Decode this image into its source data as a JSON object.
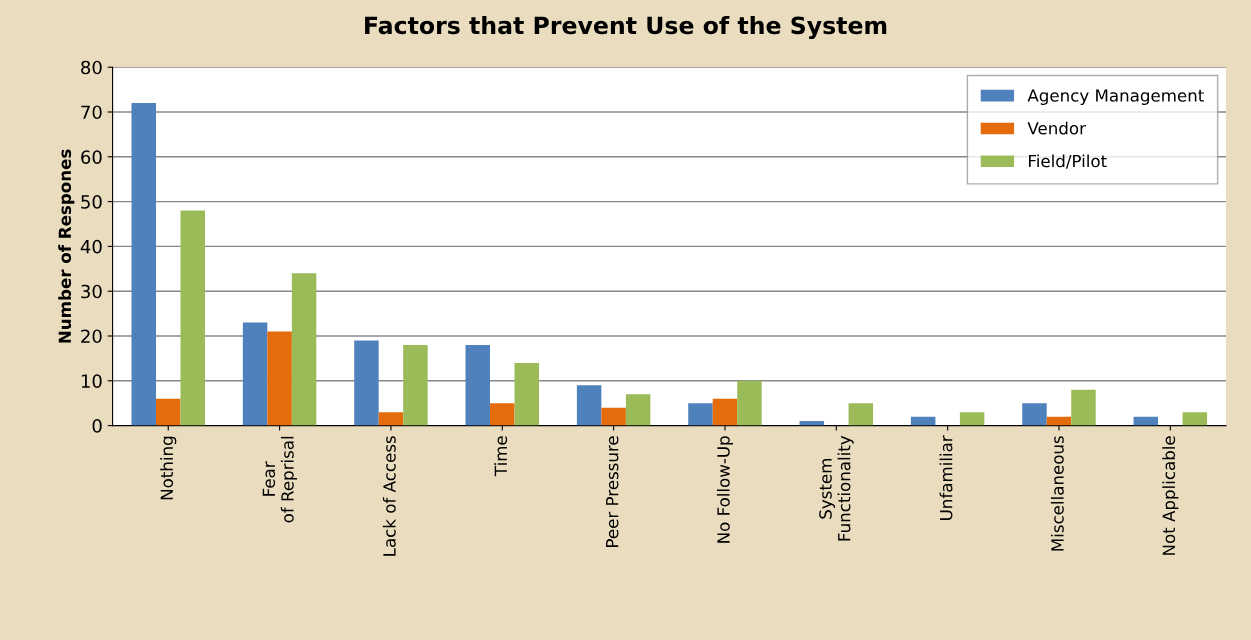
{
  "chart_data": {
    "type": "bar",
    "title": "Factors that Prevent Use of the System",
    "ylabel": "Number of Respones",
    "categories": [
      "Nothing",
      "Fear of Reprisal",
      "Lack of Access",
      "Time",
      "Peer Pressure",
      "No Follow-Up",
      "System Functionality",
      "Unfamiliar",
      "Miscellaneous",
      "Not Applicable"
    ],
    "series": [
      {
        "name": "Agency Management",
        "color": "#4f81bd",
        "values": [
          72,
          23,
          19,
          18,
          9,
          5,
          1,
          2,
          5,
          2
        ]
      },
      {
        "name": "Vendor",
        "color": "#e46c0a",
        "values": [
          6,
          21,
          3,
          5,
          4,
          6,
          0,
          0,
          2,
          0
        ]
      },
      {
        "name": "Field/Pilot",
        "color": "#9bbb59",
        "values": [
          48,
          34,
          18,
          14,
          7,
          10,
          5,
          3,
          8,
          3
        ]
      }
    ],
    "ylim": [
      0,
      80
    ],
    "yticks": [
      0,
      10,
      20,
      30,
      40,
      50,
      60,
      70,
      80
    ],
    "grid": "y",
    "legend": "top right"
  }
}
